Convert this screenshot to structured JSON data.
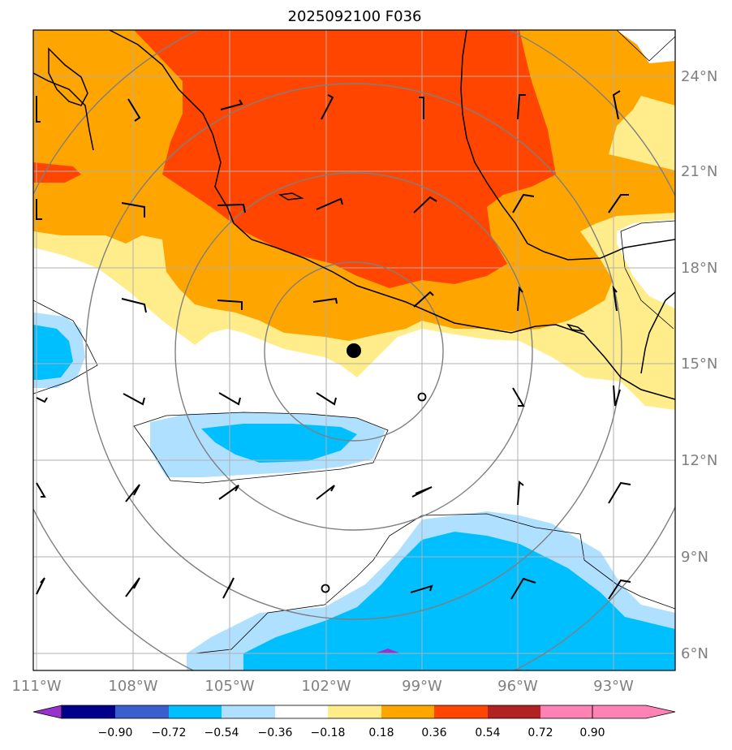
{
  "title": "2025092100 F036",
  "map": {
    "lon_labels": [
      "111°W",
      "108°W",
      "105°W",
      "102°W",
      "99°W",
      "96°W",
      "93°W"
    ],
    "lat_labels": [
      "24°N",
      "21°N",
      "18°N",
      "15°N",
      "12°N",
      "9°N",
      "6°N"
    ],
    "extent": {
      "lon_min": -111,
      "lon_max": -91,
      "lat_min": 5.5,
      "lat_max": 26
    },
    "center_marker": {
      "lon": -101.2,
      "lat": 15.4
    },
    "range_rings": 4,
    "wind_barbs": true,
    "coastlines": true
  },
  "colorbar": {
    "levels": [
      "−0.90",
      "−0.72",
      "−0.54",
      "−0.36",
      "−0.18",
      "0.18",
      "0.36",
      "0.54",
      "0.72",
      "0.90"
    ],
    "colors": [
      "#9932cc",
      "#00008b",
      "#3a5fcd",
      "#00bfff",
      "#b0e0ff",
      "#ffffff",
      "#ffec8b",
      "#ffa500",
      "#ff4500",
      "#b22222",
      "#ff82b4"
    ]
  }
}
